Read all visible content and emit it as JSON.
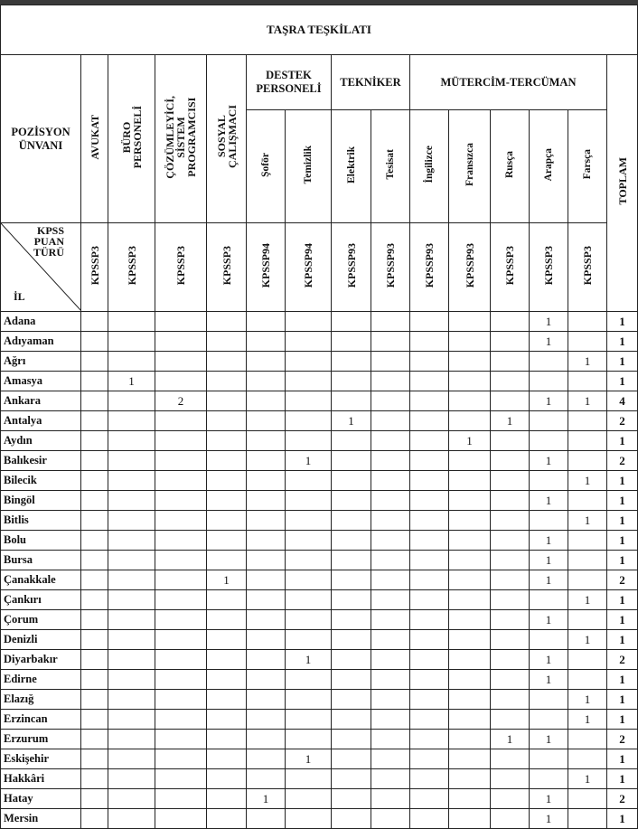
{
  "title": "TAŞRA TEŞKİLATI",
  "position_label": "POZİSYON\nÜNVANI",
  "corner": {
    "kpss": "KPSS\nPUAN\nTÜRÜ",
    "il": "İL"
  },
  "groups": {
    "avukat": "AVUKAT",
    "buro": "BÜRO\nPERSONELİ",
    "cozumleyici": "ÇÖZÜMLEYİCİ,\nSİSTEM\nPROGRAMCISI",
    "sosyal": "SOSYAL\nÇALIŞMACI",
    "destek": "DESTEK PERSONELİ",
    "tekniker": "TEKNİKER",
    "mutercim": "MÜTERCİM-TERCÜMAN",
    "toplam": "TOPLAM"
  },
  "subcols": {
    "sofor": "Şoför",
    "temizlik": "Temizlik",
    "elektrik": "Elektrik",
    "tesisat": "Tesisat",
    "ingilizce": "İngilizce",
    "fransizca": "Fransızca",
    "rusca": "Rusça",
    "arapca": "Arapça",
    "farsca": "Farsça"
  },
  "score_types": [
    "KPSSP3",
    "KPSSP3",
    "KPSSP3",
    "KPSSP3",
    "KPSSP94",
    "KPSSP94",
    "KPSSP93",
    "KPSSP93",
    "KPSSP93",
    "KPSSP93",
    "KPSSP3",
    "KPSSP3",
    "KPSSP3"
  ],
  "rows": [
    {
      "il": "Adana",
      "v": [
        "",
        "",
        "",
        "",
        "",
        "",
        "",
        "",
        "",
        "",
        "",
        "1",
        ""
      ],
      "total": "1"
    },
    {
      "il": "Adıyaman",
      "v": [
        "",
        "",
        "",
        "",
        "",
        "",
        "",
        "",
        "",
        "",
        "",
        "1",
        ""
      ],
      "total": "1"
    },
    {
      "il": "Ağrı",
      "v": [
        "",
        "",
        "",
        "",
        "",
        "",
        "",
        "",
        "",
        "",
        "",
        "",
        "1"
      ],
      "total": "1"
    },
    {
      "il": "Amasya",
      "v": [
        "",
        "1",
        "",
        "",
        "",
        "",
        "",
        "",
        "",
        "",
        "",
        "",
        ""
      ],
      "total": "1"
    },
    {
      "il": "Ankara",
      "v": [
        "",
        "",
        "2",
        "",
        "",
        "",
        "",
        "",
        "",
        "",
        "",
        "1",
        "1"
      ],
      "total": "4"
    },
    {
      "il": "Antalya",
      "v": [
        "",
        "",
        "",
        "",
        "",
        "",
        "1",
        "",
        "",
        "",
        "1",
        "",
        ""
      ],
      "total": "2"
    },
    {
      "il": "Aydın",
      "v": [
        "",
        "",
        "",
        "",
        "",
        "",
        "",
        "",
        "",
        "1",
        "",
        "",
        ""
      ],
      "total": "1"
    },
    {
      "il": "Balıkesir",
      "v": [
        "",
        "",
        "",
        "",
        "",
        "1",
        "",
        "",
        "",
        "",
        "",
        "1",
        ""
      ],
      "total": "2"
    },
    {
      "il": "Bilecik",
      "v": [
        "",
        "",
        "",
        "",
        "",
        "",
        "",
        "",
        "",
        "",
        "",
        "",
        "1"
      ],
      "total": "1"
    },
    {
      "il": "Bingöl",
      "v": [
        "",
        "",
        "",
        "",
        "",
        "",
        "",
        "",
        "",
        "",
        "",
        "1",
        ""
      ],
      "total": "1"
    },
    {
      "il": "Bitlis",
      "v": [
        "",
        "",
        "",
        "",
        "",
        "",
        "",
        "",
        "",
        "",
        "",
        "",
        "1"
      ],
      "total": "1"
    },
    {
      "il": "Bolu",
      "v": [
        "",
        "",
        "",
        "",
        "",
        "",
        "",
        "",
        "",
        "",
        "",
        "1",
        ""
      ],
      "total": "1"
    },
    {
      "il": "Bursa",
      "v": [
        "",
        "",
        "",
        "",
        "",
        "",
        "",
        "",
        "",
        "",
        "",
        "1",
        ""
      ],
      "total": "1"
    },
    {
      "il": "Çanakkale",
      "v": [
        "",
        "",
        "",
        "1",
        "",
        "",
        "",
        "",
        "",
        "",
        "",
        "1",
        ""
      ],
      "total": "2"
    },
    {
      "il": "Çankırı",
      "v": [
        "",
        "",
        "",
        "",
        "",
        "",
        "",
        "",
        "",
        "",
        "",
        "",
        "1"
      ],
      "total": "1"
    },
    {
      "il": "Çorum",
      "v": [
        "",
        "",
        "",
        "",
        "",
        "",
        "",
        "",
        "",
        "",
        "",
        "1",
        ""
      ],
      "total": "1"
    },
    {
      "il": "Denizli",
      "v": [
        "",
        "",
        "",
        "",
        "",
        "",
        "",
        "",
        "",
        "",
        "",
        "",
        "1"
      ],
      "total": "1"
    },
    {
      "il": "Diyarbakır",
      "v": [
        "",
        "",
        "",
        "",
        "",
        "1",
        "",
        "",
        "",
        "",
        "",
        "1",
        ""
      ],
      "total": "2"
    },
    {
      "il": "Edirne",
      "v": [
        "",
        "",
        "",
        "",
        "",
        "",
        "",
        "",
        "",
        "",
        "",
        "1",
        ""
      ],
      "total": "1"
    },
    {
      "il": "Elazığ",
      "v": [
        "",
        "",
        "",
        "",
        "",
        "",
        "",
        "",
        "",
        "",
        "",
        "",
        "1"
      ],
      "total": "1"
    },
    {
      "il": "Erzincan",
      "v": [
        "",
        "",
        "",
        "",
        "",
        "",
        "",
        "",
        "",
        "",
        "",
        "",
        "1"
      ],
      "total": "1"
    },
    {
      "il": "Erzurum",
      "v": [
        "",
        "",
        "",
        "",
        "",
        "",
        "",
        "",
        "",
        "",
        "1",
        "1",
        ""
      ],
      "total": "2"
    },
    {
      "il": "Eskişehir",
      "v": [
        "",
        "",
        "",
        "",
        "",
        "1",
        "",
        "",
        "",
        "",
        "",
        "",
        ""
      ],
      "total": "1"
    },
    {
      "il": "Hakkâri",
      "v": [
        "",
        "",
        "",
        "",
        "",
        "",
        "",
        "",
        "",
        "",
        "",
        "",
        "1"
      ],
      "total": "1"
    },
    {
      "il": "Hatay",
      "v": [
        "",
        "",
        "",
        "",
        "1",
        "",
        "",
        "",
        "",
        "",
        "",
        "1",
        ""
      ],
      "total": "2"
    },
    {
      "il": "Mersin",
      "v": [
        "",
        "",
        "",
        "",
        "",
        "",
        "",
        "",
        "",
        "",
        "",
        "1",
        ""
      ],
      "total": "1"
    }
  ]
}
